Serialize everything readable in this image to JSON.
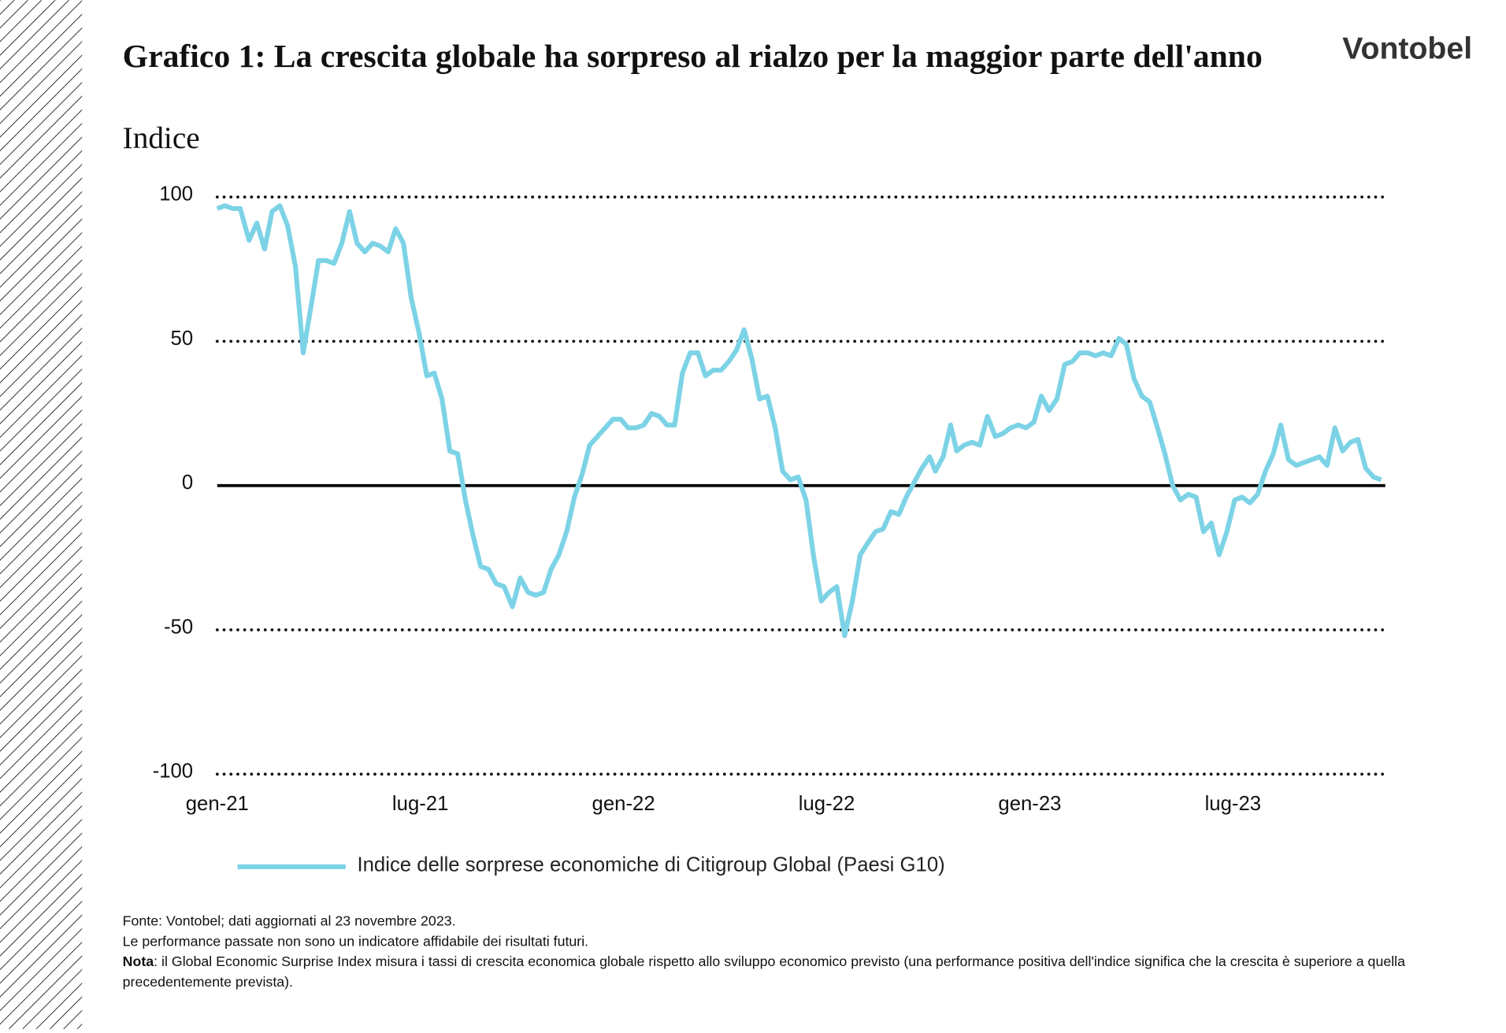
{
  "logo": "Vontobel",
  "chart_data": {
    "type": "line",
    "title": "Grafico 1: La crescita globale ha sorpreso al rialzo per la maggior parte dell'anno",
    "subtitle": "Indice",
    "x": [
      0,
      0.23,
      0.46,
      0.68,
      0.94,
      1.17,
      1.4,
      1.62,
      1.85,
      2.08,
      2.31,
      2.54,
      2.77,
      2.99,
      3.22,
      3.45,
      3.68,
      3.91,
      4.13,
      4.36,
      4.59,
      4.82,
      5.05,
      5.27,
      5.5,
      5.73,
      5.96,
      6.19,
      6.41,
      6.64,
      6.87,
      7.1,
      7.33,
      7.55,
      7.78,
      8.01,
      8.24,
      8.47,
      8.72,
      8.95,
      9.18,
      9.41,
      9.64,
      9.86,
      10.09,
      10.32,
      10.55,
      10.78,
      11,
      11.23,
      11.46,
      11.69,
      11.92,
      12.14,
      12.37,
      12.6,
      12.83,
      13.06,
      13.28,
      13.51,
      13.74,
      13.97,
      14.2,
      14.42,
      14.65,
      14.88,
      15.11,
      15.34,
      15.56,
      15.79,
      16.02,
      16.25,
      16.48,
      16.7,
      16.93,
      17.16,
      17.39,
      17.62,
      17.84,
      18.07,
      18.3,
      18.53,
      18.76,
      18.99,
      19.21,
      19.44,
      19.67,
      19.9,
      20.13,
      20.35,
      20.58,
      20.81,
      21.04,
      21.21,
      21.44,
      21.66,
      21.84,
      22.06,
      22.29,
      22.52,
      22.75,
      22.98,
      23.2,
      23.43,
      23.66,
      23.89,
      24.12,
      24.34,
      24.57,
      24.8,
      25.03,
      25.26,
      25.48,
      25.71,
      25.94,
      26.17,
      26.4,
      26.63,
      26.85,
      27.08,
      27.31,
      27.54,
      27.77,
      27.99,
      28.22,
      28.45,
      28.68,
      28.91,
      29.13,
      29.36,
      29.59,
      29.82,
      30.05,
      30.27,
      30.5,
      30.73,
      30.96,
      31.19,
      31.41,
      31.64,
      31.87,
      32.1,
      32.33,
      32.55,
      32.78,
      33.01,
      33.24,
      33.47,
      33.69,
      33.92,
      34.15,
      34.38
    ],
    "series": [
      {
        "name": "Indice delle sorprese economiche di Citigroup Global (Paesi G10)",
        "color": "#7dd3e6",
        "values": [
          96,
          97,
          96,
          96,
          85,
          91,
          82,
          95,
          97,
          90,
          76,
          46,
          62,
          78,
          78,
          77,
          84,
          95,
          84,
          81,
          84,
          83,
          81,
          89,
          84,
          65,
          53,
          38,
          39,
          30,
          12,
          11,
          -5,
          -17,
          -28,
          -29,
          -34,
          -35,
          -42,
          -32,
          -37,
          -38,
          -37,
          -29,
          -24,
          -16,
          -4,
          4,
          14,
          17,
          20,
          23,
          23,
          20,
          20,
          21,
          25,
          24,
          21,
          21,
          39,
          46,
          46,
          38,
          40,
          40,
          43,
          47,
          54,
          44,
          30,
          31,
          20,
          5,
          2,
          3,
          -5,
          -25,
          -40,
          -37,
          -35,
          -52,
          -40,
          -24,
          -20,
          -16,
          -15,
          -9,
          -10,
          -4,
          1,
          6,
          10,
          5,
          10,
          21,
          12,
          14,
          15,
          14,
          24,
          17,
          18,
          20,
          21,
          20,
          22,
          31,
          26,
          30,
          42,
          43,
          46,
          46,
          45,
          46,
          45,
          51,
          49,
          37,
          31,
          29,
          20,
          11,
          0,
          -5,
          -3,
          -4,
          -16,
          -13,
          -24,
          -16,
          -5,
          -4,
          -6,
          -3,
          5,
          11,
          21,
          9,
          7,
          8,
          9,
          10,
          7,
          20,
          12,
          15,
          16,
          6,
          3,
          2
        ]
      }
    ],
    "xlim": [
      0,
      34.5
    ],
    "xticks": [
      {
        "value": 0,
        "label": "gen-21"
      },
      {
        "value": 6,
        "label": "lug-21"
      },
      {
        "value": 12,
        "label": "gen-22"
      },
      {
        "value": 18,
        "label": "lug-22"
      },
      {
        "value": 24,
        "label": "gen-23"
      },
      {
        "value": 30,
        "label": "lug-23"
      }
    ],
    "ylim": [
      -100,
      100
    ],
    "yticks": [
      -100,
      -50,
      0,
      50,
      100
    ],
    "grid": true,
    "zero_line": true
  },
  "footnotes": [
    "Fonte: Vontobel; dati aggiornati al 23 novembre 2023.",
    "Le performance passate non sono un indicatore affidabile dei risultati futuri."
  ],
  "note": {
    "label": "Nota",
    "text": ": il Global Economic Surprise Index misura i tassi di crescita economica globale rispetto allo sviluppo economico previsto (una performance positiva dell'indice significa che la crescita è superiore a quella precedentemente prevista)."
  }
}
